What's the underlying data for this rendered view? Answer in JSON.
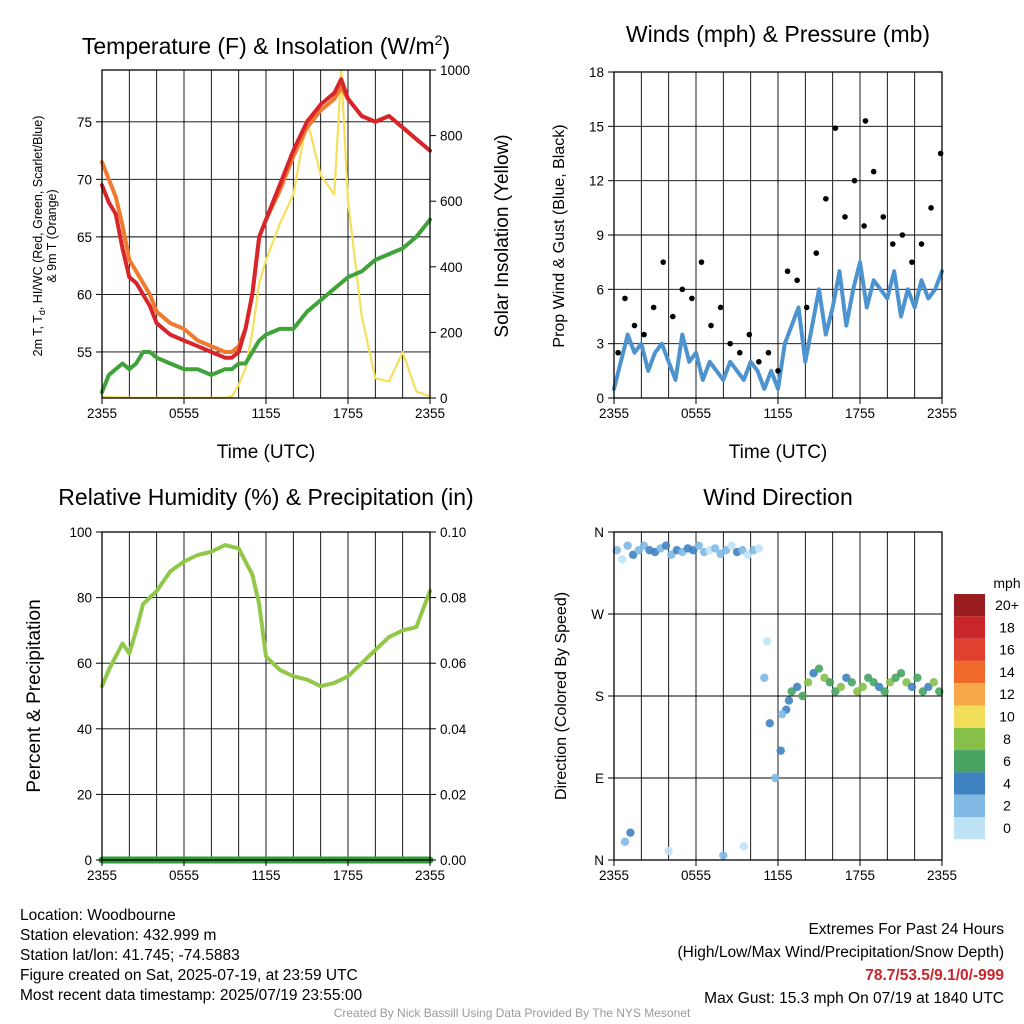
{
  "colors": {
    "red": "#d7252b",
    "orange": "#f07a2e",
    "yellow": "#f5df5b",
    "green": "#3fa33a",
    "rh_green": "#92c84a",
    "precip_green": "#2f9a3a",
    "wind_blue": "#4c93cf",
    "gust_black": "#000000"
  },
  "time_ticks": [
    "2355",
    "0555",
    "1155",
    "1755",
    "2355"
  ],
  "chart_data": [
    {
      "type": "line",
      "title": "Temperature (F) & Insolation (W/m²)",
      "xlabel": "Time (UTC)",
      "ylabel": "2m T, Td, HI/WC (Red, Green, Scarlet/Blue) & 9m T (Orange)",
      "ylabel_right": "Solar Insolation (Yellow)",
      "ylim": [
        51,
        79.5
      ],
      "ylim_right": [
        0,
        1000
      ],
      "yticks": [
        55,
        60,
        65,
        70,
        75
      ],
      "yticks_right": [
        0,
        200,
        400,
        600,
        800,
        1000
      ],
      "x_hours": [
        0,
        0.5,
        1,
        1.5,
        2,
        2.5,
        3,
        3.5,
        4,
        5,
        6,
        7,
        8,
        9,
        9.5,
        10,
        10.5,
        11,
        11.5,
        12,
        13,
        14,
        15,
        16,
        17,
        17.5,
        18,
        19,
        20,
        21,
        22,
        23,
        24
      ],
      "series": [
        {
          "name": "2m T",
          "axis": "left",
          "color": "red",
          "values": [
            69.5,
            68,
            67,
            64,
            61.5,
            61,
            60,
            59,
            57.5,
            56.5,
            56,
            55.5,
            55,
            54.5,
            54.5,
            55,
            57,
            60,
            65,
            66.5,
            69.5,
            72.5,
            75,
            76.5,
            77.5,
            78.7,
            77,
            75.5,
            75,
            75.5,
            74.5,
            73.5,
            72.5
          ]
        },
        {
          "name": "9m T",
          "axis": "left",
          "color": "orange",
          "values": [
            71.5,
            70,
            68.5,
            66,
            63,
            62,
            61,
            60,
            58.5,
            57.5,
            57,
            56,
            55.5,
            55,
            55,
            55.5,
            57,
            60,
            65,
            66.5,
            69,
            72,
            74.5,
            76,
            77,
            78,
            77,
            75.5,
            75,
            75.5,
            74.5,
            73.5,
            72.5
          ]
        },
        {
          "name": "Td",
          "axis": "left",
          "color": "green",
          "values": [
            51.5,
            53,
            53.5,
            54,
            53.5,
            54,
            55,
            55,
            54.5,
            54,
            53.5,
            53.5,
            53,
            53.5,
            53.5,
            54,
            54,
            55,
            56,
            56.5,
            57,
            57,
            58.5,
            59.5,
            60.5,
            61,
            61.5,
            62,
            63,
            63.5,
            64,
            65,
            66.5
          ]
        },
        {
          "name": "Solar Insolation",
          "axis": "right",
          "color": "yellow",
          "values": [
            5,
            3,
            2,
            2,
            1,
            1,
            1,
            1,
            1,
            1,
            1,
            1,
            1,
            1,
            5,
            40,
            90,
            200,
            350,
            420,
            530,
            620,
            850,
            680,
            620,
            1000,
            600,
            250,
            60,
            50,
            140,
            20,
            5
          ]
        }
      ]
    },
    {
      "type": "scatter",
      "title": "Winds (mph) & Pressure (mb)",
      "xlabel": "Time (UTC)",
      "ylabel": "Prop Wind & Gust (Blue, Black)",
      "ylim": [
        0,
        18
      ],
      "yticks": [
        0,
        3,
        6,
        9,
        12,
        15,
        18
      ],
      "wind_x_hours": [
        0,
        0.5,
        1,
        1.5,
        2,
        2.5,
        3,
        3.5,
        4,
        4.5,
        5,
        5.5,
        6,
        6.5,
        7,
        7.5,
        8,
        8.5,
        9,
        9.5,
        10,
        10.5,
        11,
        11.5,
        12,
        12.5,
        13,
        13.5,
        14,
        14.5,
        15,
        15.5,
        16,
        16.5,
        17,
        17.5,
        18,
        18.5,
        19,
        19.5,
        20,
        20.5,
        21,
        21.5,
        22,
        22.5,
        23,
        23.5,
        24
      ],
      "wind_values": [
        0.5,
        2,
        3.5,
        2.5,
        3,
        1.5,
        2.5,
        3,
        2,
        1,
        3.5,
        2,
        2.5,
        1,
        2,
        1.5,
        1,
        2,
        1.5,
        1,
        2,
        1.5,
        0.5,
        1.5,
        0.5,
        3,
        4,
        5,
        2,
        4,
        6,
        3.5,
        5,
        7,
        4,
        6,
        7.5,
        5,
        6.5,
        6,
        5.5,
        7,
        4.5,
        6,
        5,
        6.5,
        5.5,
        6,
        7
      ],
      "gust_x_hours": [
        0.3,
        0.8,
        1.5,
        2.2,
        2.9,
        3.6,
        4.3,
        5.0,
        5.7,
        6.4,
        7.1,
        7.8,
        8.5,
        9.2,
        9.9,
        10.6,
        11.3,
        12.0,
        12.7,
        13.4,
        14.1,
        14.8,
        15.5,
        16.2,
        16.9,
        17.6,
        18.3,
        18.4,
        19.0,
        19.7,
        20.4,
        21.1,
        21.8,
        22.5,
        23.2,
        23.9
      ],
      "gust_values": [
        2.5,
        5.5,
        4,
        3.5,
        5,
        7.5,
        4.5,
        6,
        5.5,
        7.5,
        4,
        5,
        3,
        2.5,
        3.5,
        2,
        2.5,
        1.5,
        7,
        6.5,
        5,
        8,
        11,
        14.9,
        10,
        12,
        9.5,
        15.3,
        12.5,
        10,
        8.5,
        9,
        7.5,
        8.5,
        10.5,
        13.5
      ]
    },
    {
      "type": "line",
      "title": "Relative Humidity (%) & Precipitation (in)",
      "ylabel": "Percent & Precipitation",
      "ylim": [
        0,
        100
      ],
      "ylim_right": [
        0,
        0.1
      ],
      "yticks": [
        0,
        20,
        40,
        60,
        80,
        100
      ],
      "yticks_right": [
        "0.00",
        "0.02",
        "0.04",
        "0.06",
        "0.08",
        "0.10"
      ],
      "x_hours": [
        0,
        0.5,
        1,
        1.5,
        2,
        2.5,
        3,
        4,
        5,
        6,
        7,
        8,
        9,
        10,
        11,
        11.5,
        12,
        13,
        14,
        15,
        16,
        17,
        18,
        19,
        20,
        21,
        22,
        23,
        24
      ],
      "series": [
        {
          "name": "RH",
          "color": "rh_green",
          "values": [
            53,
            58,
            62,
            66,
            63,
            70,
            78,
            82,
            88,
            91,
            93,
            94,
            96,
            95,
            87,
            78,
            62,
            58,
            56,
            55,
            53,
            54,
            56,
            60,
            64,
            68,
            70,
            71,
            82
          ]
        },
        {
          "name": "Precipitation",
          "color": "precip_green",
          "values": [
            0,
            0,
            0,
            0,
            0,
            0,
            0,
            0,
            0,
            0,
            0,
            0,
            0,
            0,
            0,
            0,
            0,
            0,
            0,
            0,
            0,
            0,
            0,
            0,
            0,
            0,
            0,
            0,
            0
          ]
        }
      ]
    },
    {
      "type": "scatter",
      "title": "Wind Direction",
      "ylabel": "Direction (Colored By Speed)",
      "yticks": [
        "N",
        "E",
        "S",
        "W",
        "N"
      ],
      "ylim_degrees": [
        0,
        360
      ],
      "x_hours": [
        0.2,
        0.6,
        1.0,
        1.4,
        1.8,
        2.2,
        2.6,
        3.0,
        3.4,
        3.8,
        4.2,
        4.6,
        5.0,
        5.4,
        5.8,
        6.2,
        6.6,
        7.0,
        7.4,
        7.8,
        8.2,
        8.6,
        9.0,
        9.4,
        9.8,
        10.2,
        10.6,
        11.0,
        11.4,
        11.8,
        12.2,
        12.6,
        13.0,
        13.4,
        13.8,
        14.2,
        14.6,
        15.0,
        15.4,
        15.8,
        16.2,
        16.6,
        17.0,
        17.4,
        17.8,
        18.2,
        18.6,
        19.0,
        19.4,
        19.8,
        20.2,
        20.6,
        21.0,
        21.4,
        21.8,
        22.2,
        22.6,
        23.0,
        23.4,
        23.8,
        0.8,
        1.2,
        4.0,
        8.0,
        9.5,
        11.2,
        12.3,
        12.8
      ],
      "directions": [
        340,
        330,
        345,
        335,
        340,
        345,
        340,
        338,
        342,
        345,
        335,
        340,
        338,
        342,
        340,
        345,
        338,
        340,
        342,
        336,
        340,
        345,
        338,
        340,
        335,
        340,
        342,
        200,
        150,
        90,
        120,
        165,
        185,
        190,
        180,
        195,
        205,
        210,
        200,
        195,
        185,
        190,
        200,
        195,
        185,
        190,
        200,
        195,
        190,
        185,
        195,
        200,
        205,
        195,
        190,
        200,
        185,
        190,
        195,
        185,
        20,
        30,
        10,
        5,
        15,
        240,
        160,
        175
      ],
      "speeds_mph": [
        1,
        0,
        2,
        3,
        2,
        1,
        3,
        4,
        2,
        3,
        1,
        3,
        2,
        4,
        3,
        2,
        1,
        0,
        1,
        2,
        1,
        0,
        3,
        2,
        0,
        1,
        0,
        1,
        3,
        2,
        4,
        3,
        5,
        4,
        6,
        7,
        4,
        6,
        8,
        5,
        6,
        7,
        4,
        6,
        8,
        7,
        5,
        6,
        4,
        6,
        7,
        5,
        6,
        8,
        4,
        5,
        6,
        3,
        7,
        5,
        2,
        3,
        0,
        1,
        0,
        0,
        2,
        4
      ],
      "legend_title": "mph",
      "legend_labels": [
        "20+",
        "18",
        "16",
        "14",
        "12",
        "10",
        "8",
        "6",
        "4",
        "2",
        "0"
      ],
      "legend_colors": [
        "#9b1c1f",
        "#c8262b",
        "#e0402f",
        "#f06a2c",
        "#f8a849",
        "#f1de5a",
        "#86c049",
        "#47a362",
        "#3f82c2",
        "#80b9e3",
        "#bfe3f6"
      ]
    }
  ],
  "info": {
    "location": "Location: Woodbourne",
    "elevation": "Station elevation: 432.999 m",
    "latlon": "Station lat/lon: 41.745; -74.5883",
    "created": "Figure created on Sat, 2025-07-19, at 23:59 UTC",
    "recent": "Most recent data timestamp: 2025/07/19 23:55:00"
  },
  "extremes": {
    "title": "Extremes For Past 24 Hours",
    "subtitle": "(High/Low/Max Wind/Precipitation/Snow Depth)",
    "values": "78.7/53.5/9.1/0/-999",
    "gust": "Max Gust: 15.3 mph On 07/19 at 1840 UTC"
  },
  "credit": "Created By Nick Bassill Using Data Provided By The NYS Mesonet"
}
